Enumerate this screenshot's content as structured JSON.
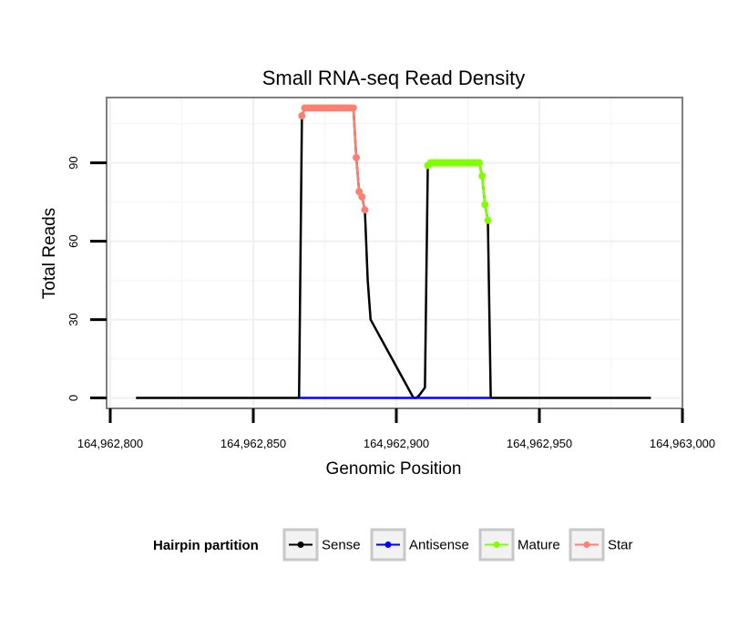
{
  "chart_data": {
    "type": "line",
    "title": "Small RNA-seq Read Density",
    "xlabel": "Genomic Position",
    "ylabel": "Total Reads",
    "xlim": [
      164962800,
      164963000
    ],
    "ylim": [
      -4,
      115
    ],
    "x_ticks": [
      164962800,
      164962850,
      164962900,
      164962950,
      164963000
    ],
    "x_tick_labels": [
      "164,962,800",
      "164,962,850",
      "164,962,900",
      "164,962,950",
      "164,963,000"
    ],
    "y_ticks": [
      0,
      30,
      60,
      90
    ],
    "y_tick_labels": [
      "0",
      "30",
      "60",
      "90"
    ],
    "grid": true,
    "legend": {
      "title": "Hairpin partition",
      "position": "bottom",
      "entries": [
        {
          "name": "Sense",
          "color": "#000000"
        },
        {
          "name": "Antisense",
          "color": "#0000ff"
        },
        {
          "name": "Mature",
          "color": "#7fff00"
        },
        {
          "name": "Star",
          "color": "#fa8072"
        }
      ]
    },
    "series": [
      {
        "name": "Sense",
        "color": "#000000",
        "x": [
          164962809,
          164962866,
          164962867,
          164962868,
          164962885,
          164962886,
          164962887,
          164962888,
          164962889,
          164962890,
          164962891,
          164962906,
          164962907,
          164962908,
          164962910,
          164962911,
          164962912,
          164962929,
          164962930,
          164962931,
          164962932,
          164962933,
          164962989
        ],
        "y": [
          0,
          0,
          108,
          111,
          111,
          92,
          79,
          77,
          72,
          45,
          30,
          0,
          0,
          1,
          4,
          89,
          90,
          90,
          85,
          74,
          68,
          0,
          0
        ]
      },
      {
        "name": "Antisense",
        "color": "#0000ff",
        "x": [
          164962866,
          164962933
        ],
        "y": [
          0,
          0
        ]
      },
      {
        "name": "Mature",
        "color": "#7fff00",
        "x": [
          164962911,
          164962912,
          164962913,
          164962914,
          164962915,
          164962916,
          164962917,
          164962918,
          164962919,
          164962920,
          164962921,
          164962922,
          164962923,
          164962924,
          164962925,
          164962926,
          164962927,
          164962928,
          164962929,
          164962930,
          164962931,
          164962932
        ],
        "y": [
          89,
          90,
          90,
          90,
          90,
          90,
          90,
          90,
          90,
          90,
          90,
          90,
          90,
          90,
          90,
          90,
          90,
          90,
          90,
          85,
          74,
          68
        ]
      },
      {
        "name": "Star",
        "color": "#fa8072",
        "x": [
          164962867,
          164962868,
          164962869,
          164962870,
          164962871,
          164962872,
          164962873,
          164962874,
          164962875,
          164962876,
          164962877,
          164962878,
          164962879,
          164962880,
          164962881,
          164962882,
          164962883,
          164962884,
          164962885,
          164962886,
          164962887,
          164962888,
          164962889
        ],
        "y": [
          108,
          111,
          111,
          111,
          111,
          111,
          111,
          111,
          111,
          111,
          111,
          111,
          111,
          111,
          111,
          111,
          111,
          111,
          111,
          92,
          79,
          77,
          72
        ]
      }
    ]
  }
}
